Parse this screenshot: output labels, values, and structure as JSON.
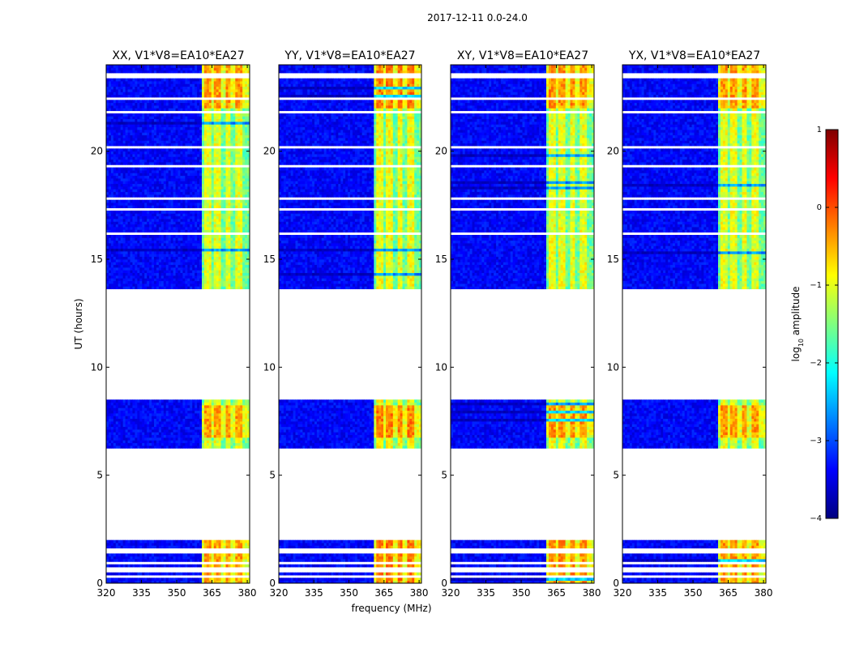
{
  "chart_data": {
    "type": "heatmap",
    "suptitle": "2017-12-11 0.0-24.0",
    "xlabel": "frequency (MHz)",
    "ylabel": "UT (hours)",
    "xlim": [
      320,
      381
    ],
    "ylim": [
      0,
      24
    ],
    "x_ticks": [
      320,
      335,
      350,
      365,
      380
    ],
    "y_ticks": [
      0,
      5,
      10,
      15,
      20
    ],
    "panels": [
      {
        "title": "XX, V1*V8=EA10*EA27",
        "pol": "XX"
      },
      {
        "title": "YY, V1*V8=EA10*EA27",
        "pol": "YY"
      },
      {
        "title": "XY, V1*V8=EA10*EA27",
        "pol": "XY"
      },
      {
        "title": "YX, V1*V8=EA10*EA27",
        "pol": "YX"
      }
    ],
    "data_time_ranges_hours": [
      [
        0.0,
        2.05
      ],
      [
        6.25,
        8.5
      ],
      [
        13.65,
        24.0
      ]
    ],
    "bright_band_mhz": [
      360.5,
      381.0
    ],
    "bright_channels_mhz": [
      363,
      367.5,
      372,
      376.5
    ],
    "colorbar": {
      "label_main": "log",
      "label_sub": "10",
      "label_rest": " amplitude",
      "min": -4,
      "max": 1,
      "ticks": [
        "1",
        "0",
        "−1",
        "−2",
        "−3",
        "−4"
      ]
    }
  }
}
